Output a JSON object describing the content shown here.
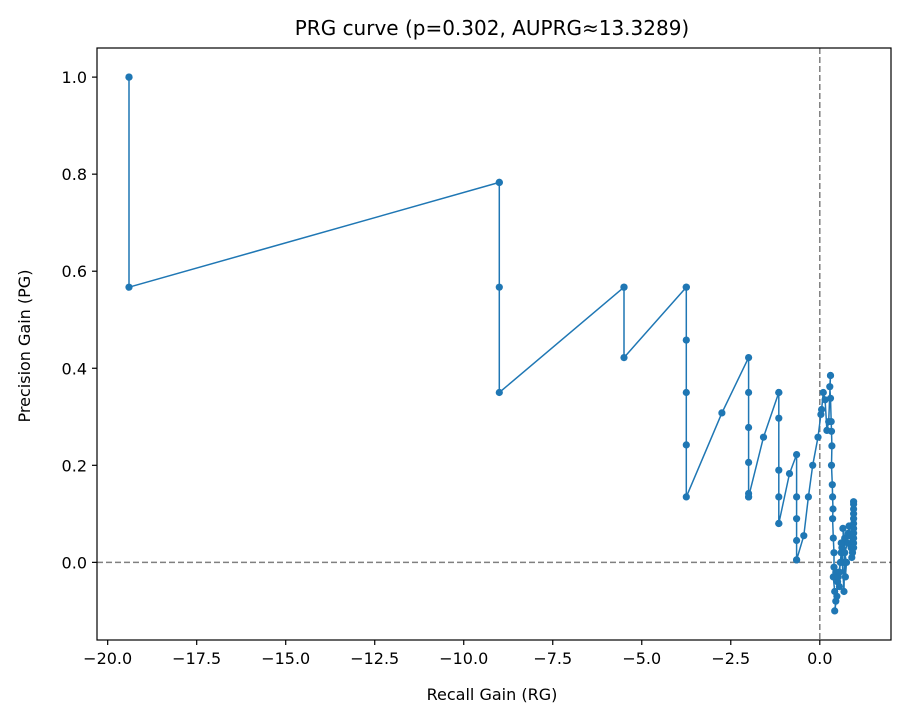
{
  "chart_data": {
    "type": "line",
    "title": "PRG curve (p=0.302, AUPRG≈13.3289)",
    "xlabel": "Recall Gain (RG)",
    "ylabel": "Precision Gain (PG)",
    "xlim": [
      -20.3,
      2.0
    ],
    "ylim": [
      -0.16,
      1.06
    ],
    "xticks": [
      -20.0,
      -17.5,
      -15.0,
      -12.5,
      -10.0,
      -7.5,
      -5.0,
      -2.5,
      0.0
    ],
    "xtick_labels": [
      "−20.0",
      "−17.5",
      "−15.0",
      "−12.5",
      "−10.0",
      "−7.5",
      "−5.0",
      "−2.5",
      "0.0"
    ],
    "yticks": [
      0.0,
      0.2,
      0.4,
      0.6,
      0.8,
      1.0
    ],
    "ytick_labels": [
      "0.0",
      "0.2",
      "0.4",
      "0.6",
      "0.8",
      "1.0"
    ],
    "reference_lines": [
      {
        "orientation": "horizontal",
        "value": 0.0,
        "style": "dashed",
        "color": "#808080"
      },
      {
        "orientation": "vertical",
        "value": 0.0,
        "style": "dashed",
        "color": "#808080"
      }
    ],
    "grid": false,
    "series": [
      {
        "color": "#1f77b4",
        "marker": "circle",
        "x": [
          -19.4,
          -19.4,
          -19.4,
          -9.0,
          -9.0,
          -9.0,
          -9.0,
          -5.5,
          -5.5,
          -5.5,
          -3.75,
          -3.75,
          -3.75,
          -3.75,
          -3.75,
          -3.75,
          -2.75,
          -2.0,
          -2.0,
          -2.0,
          -2.0,
          -2.0,
          -2.0,
          -2.0,
          -1.58,
          -1.15,
          -1.15,
          -1.15,
          -1.15,
          -1.15,
          -1.15,
          -1.15,
          -0.85,
          -0.65,
          -0.65,
          -0.65,
          -0.65,
          -0.65,
          -0.65,
          -0.45,
          -0.32,
          -0.2,
          -0.05,
          0.03,
          0.05,
          0.1,
          0.15,
          0.2,
          0.25,
          0.3,
          0.3,
          0.28,
          0.3,
          0.32,
          0.33,
          0.34,
          0.33,
          0.35,
          0.36,
          0.37,
          0.36,
          0.38,
          0.4,
          0.4,
          0.38,
          0.42,
          0.45,
          0.42,
          0.48,
          0.5,
          0.45,
          0.55,
          0.52,
          0.58,
          0.6,
          0.55,
          0.62,
          0.65,
          0.6,
          0.68,
          0.7,
          0.65,
          0.72,
          0.75,
          0.7,
          0.78,
          0.8,
          0.82,
          0.85,
          0.88,
          0.9,
          0.92,
          0.95,
          0.95,
          0.95,
          0.95,
          0.95,
          0.95,
          0.95,
          0.95,
          0.95,
          0.95,
          0.95
        ],
        "y": [
          1.0,
          1.0,
          0.567,
          0.783,
          0.783,
          0.567,
          0.35,
          0.567,
          0.567,
          0.422,
          0.567,
          0.567,
          0.458,
          0.35,
          0.242,
          0.135,
          0.308,
          0.422,
          0.35,
          0.278,
          0.206,
          0.142,
          0.135,
          0.135,
          0.258,
          0.35,
          0.35,
          0.297,
          0.19,
          0.135,
          0.08,
          0.08,
          0.183,
          0.222,
          0.135,
          0.09,
          0.045,
          0.005,
          0.005,
          0.055,
          0.135,
          0.2,
          0.258,
          0.305,
          0.315,
          0.35,
          0.335,
          0.272,
          0.29,
          0.385,
          0.385,
          0.362,
          0.338,
          0.29,
          0.27,
          0.24,
          0.2,
          0.16,
          0.135,
          0.11,
          0.09,
          0.05,
          0.02,
          -0.01,
          -0.03,
          -0.06,
          -0.08,
          -0.1,
          -0.07,
          -0.04,
          -0.02,
          -0.05,
          -0.03,
          0.0,
          0.02,
          -0.02,
          0.03,
          0.0,
          0.04,
          -0.06,
          0.05,
          0.07,
          -0.03,
          0.0,
          0.02,
          0.04,
          0.06,
          0.075,
          0.055,
          0.03,
          0.01,
          0.02,
          0.04,
          0.06,
          0.08,
          0.1,
          0.11,
          0.12,
          0.125,
          0.09,
          0.07,
          0.05,
          0.03
        ]
      }
    ]
  }
}
